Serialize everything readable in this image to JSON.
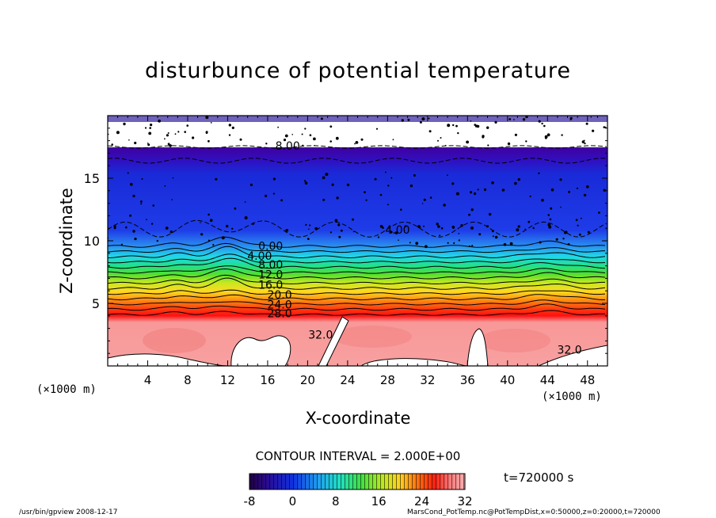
{
  "chart_data": {
    "type": "contour",
    "title": "disturbunce of potential temperature",
    "xlabel": "X-coordinate",
    "ylabel": "Z-coordinate",
    "x_unit": "(×1000 m)",
    "x_ticks": [
      4,
      8,
      12,
      16,
      20,
      24,
      28,
      32,
      36,
      40,
      44,
      48
    ],
    "y_ticks": [
      5,
      10,
      15
    ],
    "xlim": [
      0,
      50
    ],
    "ylim": [
      0,
      20
    ],
    "contour_labels": [
      {
        "text": "8.00",
        "x": 18,
        "z": 17.6
      },
      {
        "text": "4.00",
        "x": 29,
        "z": 10.9
      },
      {
        "text": "0.00",
        "x": 16.3,
        "z": 9.6
      },
      {
        "text": "4.00",
        "x": 15.2,
        "z": 8.8
      },
      {
        "text": "8.00",
        "x": 16.3,
        "z": 8.1
      },
      {
        "text": "12.0",
        "x": 16.3,
        "z": 7.3
      },
      {
        "text": "16.0",
        "x": 16.3,
        "z": 6.5
      },
      {
        "text": "20.0",
        "x": 17.2,
        "z": 5.7
      },
      {
        "text": "24.0",
        "x": 17.2,
        "z": 4.9
      },
      {
        "text": "28.0",
        "x": 17.2,
        "z": 4.2
      },
      {
        "text": "32.0",
        "x": 21.3,
        "z": 2.5
      },
      {
        "text": "32.0",
        "x": 46.2,
        "z": 1.3
      }
    ],
    "colorbar": {
      "min": -8,
      "max": 32,
      "ticks": [
        -8,
        0,
        8,
        16,
        24,
        32
      ]
    },
    "contour_interval": "CONTOUR INTERVAL = 2.000E+00"
  },
  "time_label": "t=720000 s",
  "footer_left": "/usr/bin/gpview   2008-12-17",
  "footer_right": "MarsCond_PotTemp.nc@PotTempDist,x=0:50000,z=0:20000,t=720000"
}
